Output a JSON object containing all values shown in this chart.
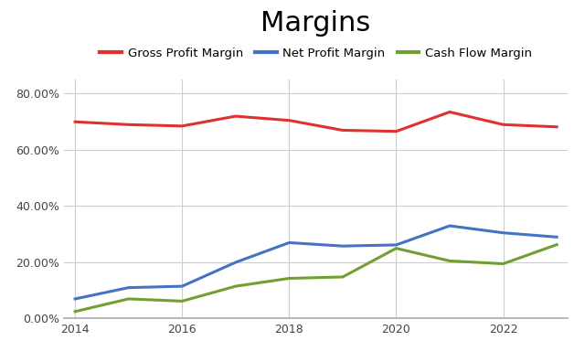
{
  "title": "Margins",
  "years": [
    2014,
    2015,
    2016,
    2017,
    2018,
    2019,
    2020,
    2021,
    2022,
    2023
  ],
  "gross_profit_margin": [
    0.7,
    0.69,
    0.685,
    0.72,
    0.705,
    0.67,
    0.666,
    0.735,
    0.69,
    0.682
  ],
  "net_profit_margin": [
    0.07,
    0.11,
    0.115,
    0.2,
    0.27,
    0.258,
    0.262,
    0.33,
    0.305,
    0.29
  ],
  "cash_flow_margin": [
    0.025,
    0.07,
    0.062,
    0.115,
    0.143,
    0.148,
    0.25,
    0.205,
    0.195,
    0.263
  ],
  "gross_color": "#e03030",
  "net_color": "#4472c4",
  "cash_color": "#70a030",
  "background_color": "#ffffff",
  "grid_color": "#cccccc",
  "ylim": [
    0.0,
    0.85
  ],
  "yticks": [
    0.0,
    0.2,
    0.4,
    0.6,
    0.8
  ],
  "legend_labels": [
    "Gross Profit Margin",
    "Net Profit Margin",
    "Cash Flow Margin"
  ],
  "line_width": 2.2,
  "title_fontsize": 22,
  "legend_fontsize": 9.5,
  "tick_fontsize": 9,
  "xticks": [
    2014,
    2016,
    2018,
    2020,
    2022
  ]
}
